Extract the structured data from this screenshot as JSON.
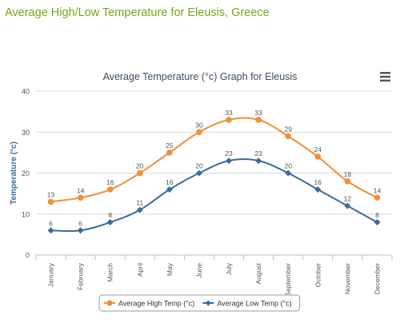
{
  "page": {
    "heading": "Average High/Low Temperature for Eleusis, Greece"
  },
  "chart_data": {
    "type": "line",
    "title": "Average Temperature (°c) Graph for Eleusis",
    "xlabel": "",
    "ylabel": "Temperature (°c)",
    "ylim": [
      0,
      40
    ],
    "yticks": [
      0,
      10,
      20,
      30,
      40
    ],
    "grid": true,
    "legend_position": "bottom",
    "categories": [
      "January",
      "February",
      "March",
      "April",
      "May",
      "June",
      "July",
      "August",
      "September",
      "October",
      "November",
      "December"
    ],
    "series": [
      {
        "name": "Average High Temp (°c)",
        "color": "#f28f38",
        "marker": "circle",
        "values": [
          13,
          14,
          16,
          20,
          25,
          30,
          33,
          33,
          29,
          24,
          18,
          14
        ]
      },
      {
        "name": "Average Low Temp (°c)",
        "color": "#3d6b99",
        "marker": "diamond",
        "values": [
          6,
          6,
          8,
          11,
          16,
          20,
          23,
          23,
          20,
          16,
          12,
          8
        ]
      }
    ]
  },
  "ui": {
    "menu_icon": "hamburger-menu-icon"
  }
}
